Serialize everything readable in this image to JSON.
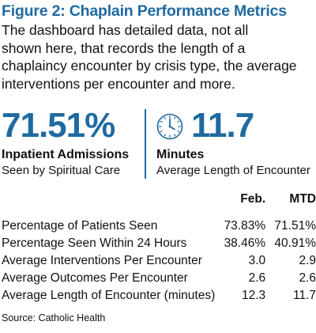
{
  "figure": {
    "title": "Figure 2: Chaplain Performance Metrics",
    "description_lines": [
      "The dashboard has detailed data, not all",
      "shown here, that records the length of a",
      "chaplaincy encounter by crisis type, the average",
      "interventions per encounter and more."
    ]
  },
  "kpis": [
    {
      "value": "71.51%",
      "label": "Inpatient Admissions",
      "sublabel": "Seen by Spiritual Care"
    },
    {
      "value": "11.7",
      "label": "Minutes",
      "sublabel": "Average Length of Encounter",
      "icon": "clock-icon"
    }
  ],
  "table": {
    "columns": [
      "",
      "Feb.",
      "MTD"
    ],
    "rows": [
      {
        "metric": "Percentage of Patients Seen",
        "feb": "73.83%",
        "mtd": "71.51%"
      },
      {
        "metric": "Percentage Seen Within 24 Hours",
        "feb": "38.46%",
        "mtd": "40.91%"
      },
      {
        "metric": "Average Interventions Per Encounter",
        "feb": "3.0",
        "mtd": "2.9"
      },
      {
        "metric": "Average Outcomes Per Encounter",
        "feb": "2.6",
        "mtd": "2.6"
      },
      {
        "metric": "Average Length of Encounter (minutes)",
        "feb": "12.3",
        "mtd": "11.7"
      }
    ]
  },
  "source": "Source: Catholic Health",
  "colors": {
    "accent": "#1f6aa0",
    "text": "#111111"
  }
}
